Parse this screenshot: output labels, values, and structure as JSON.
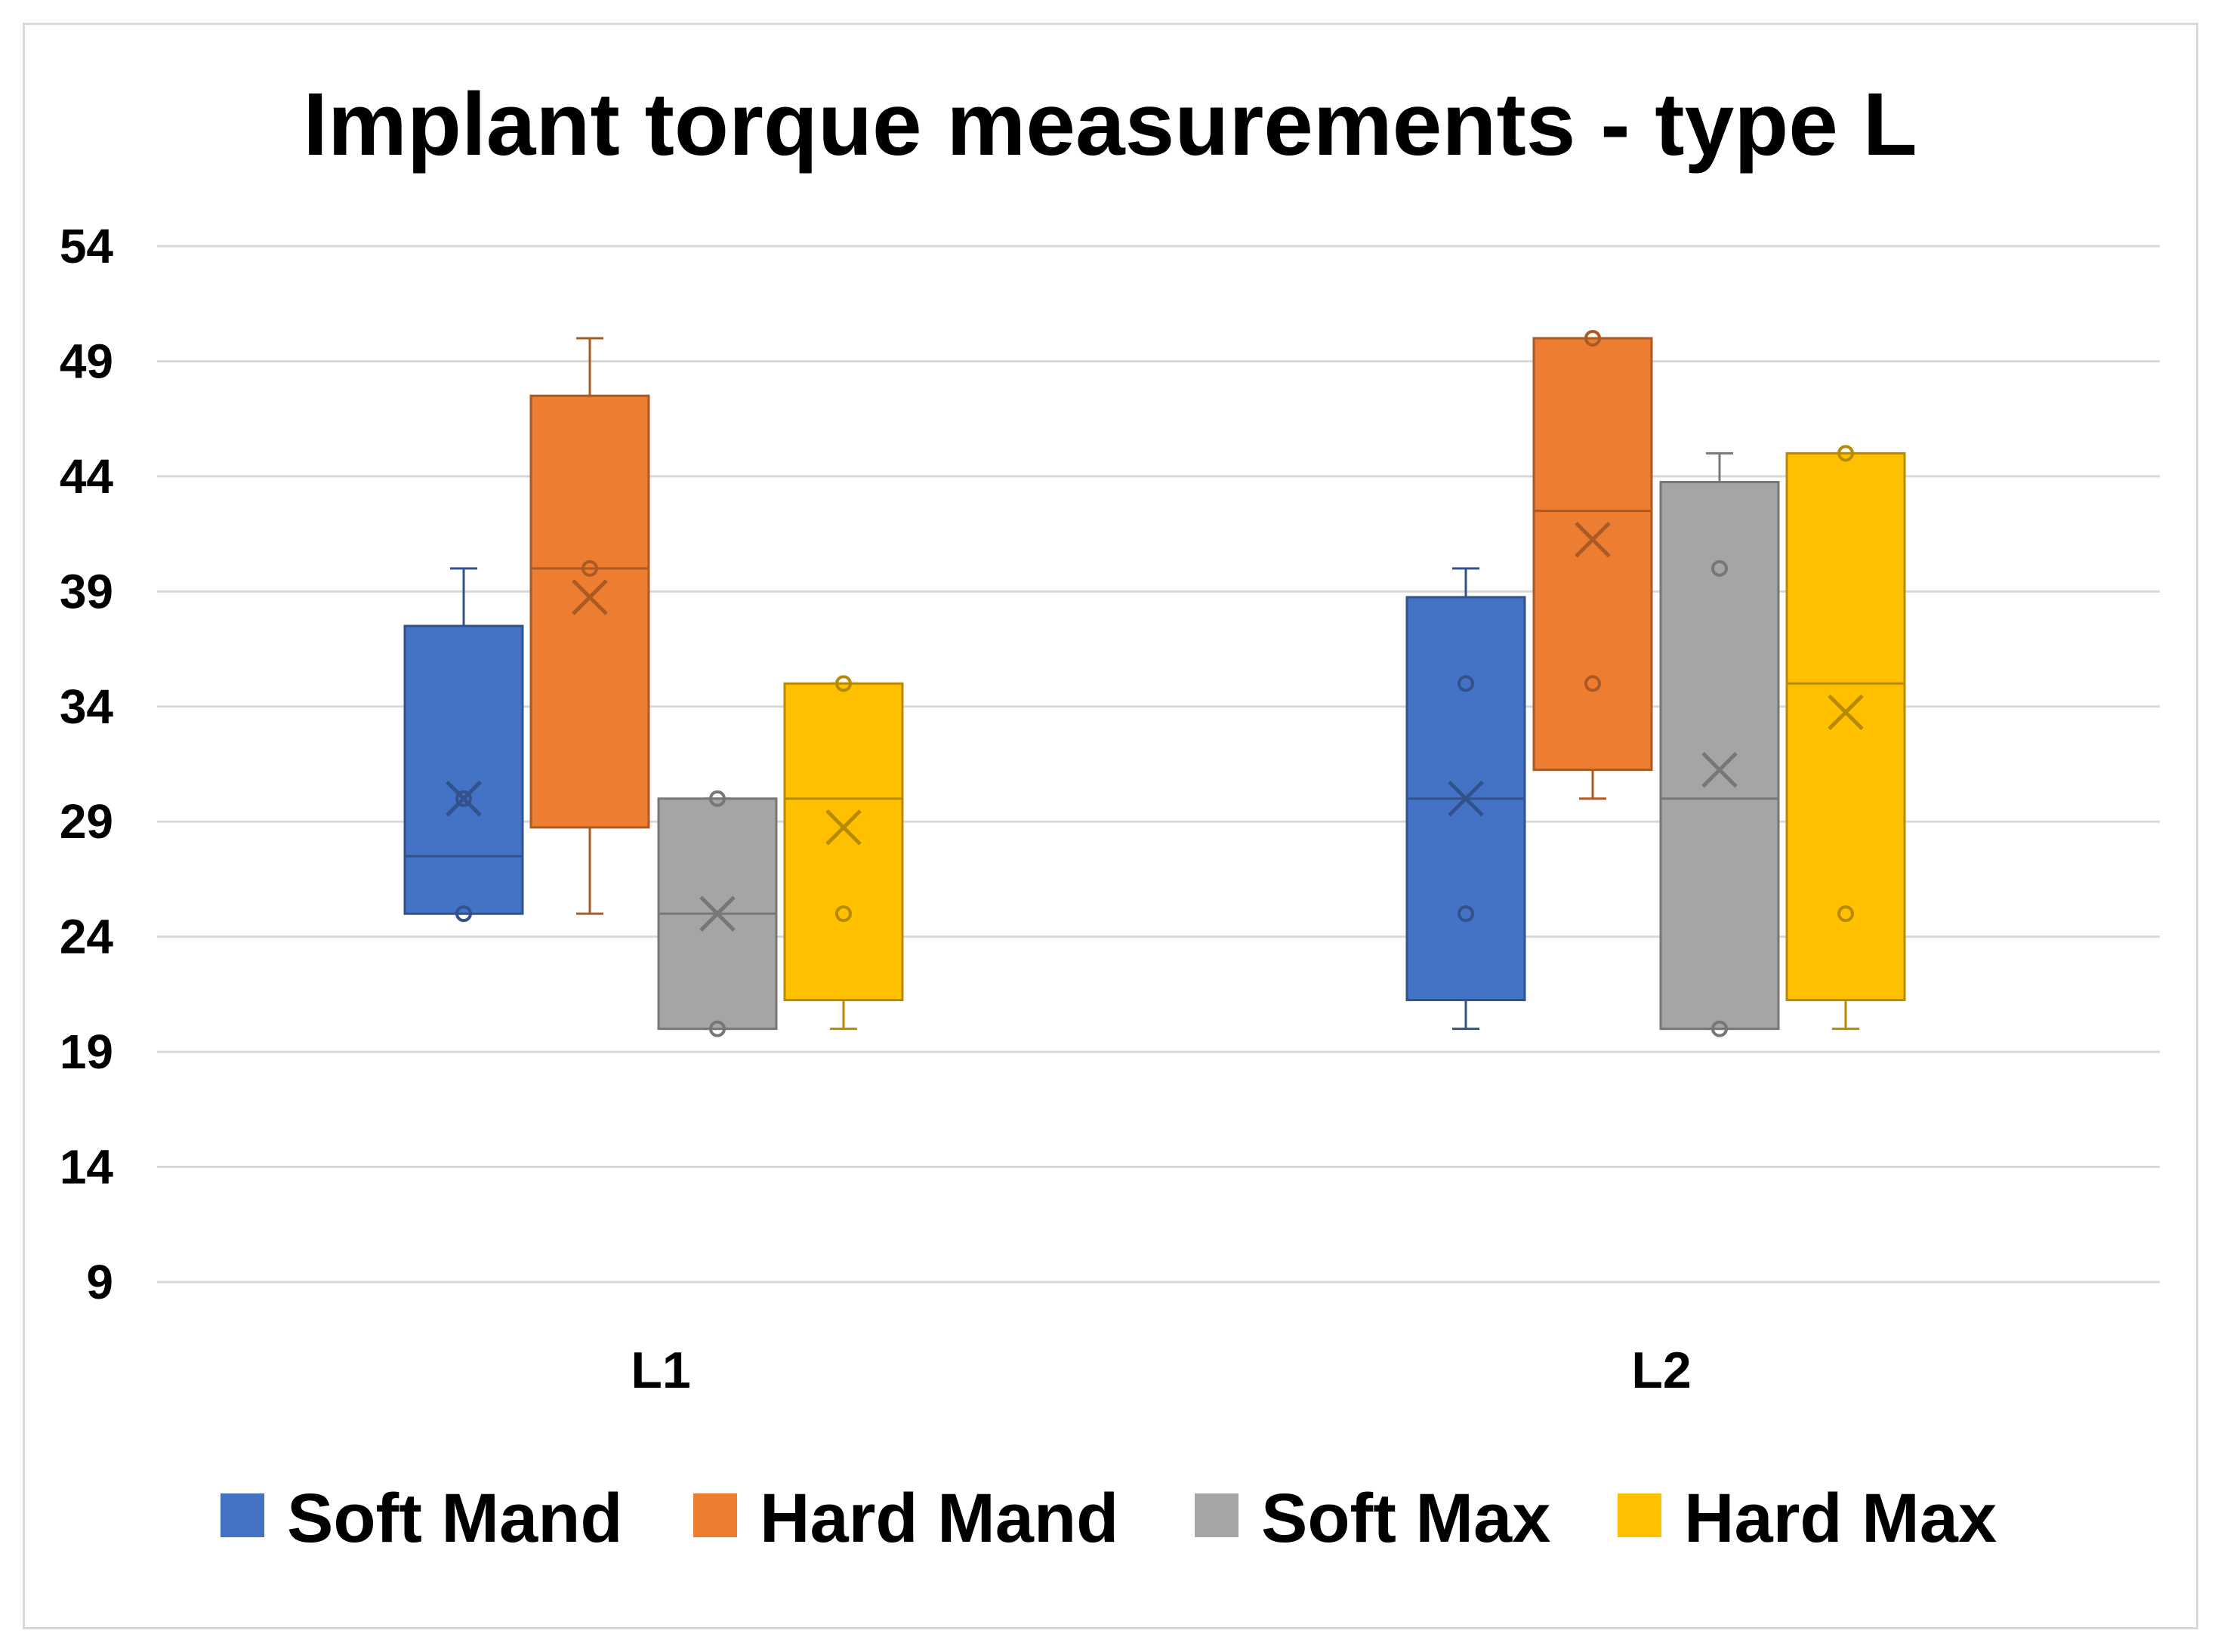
{
  "chart_data": {
    "type": "box",
    "title": "Implant torque measurements - type L",
    "xlabel": "",
    "ylabel": "",
    "ylim": [
      9,
      54
    ],
    "yticks": [
      54,
      49,
      44,
      39,
      34,
      29,
      24,
      19,
      14,
      9
    ],
    "grid": true,
    "legend_position": "bottom",
    "categories": [
      "L1",
      "L2"
    ],
    "series": [
      {
        "name": "Soft Mand",
        "color": "#4472C4",
        "boxes": [
          {
            "min": 25,
            "q1": 25,
            "median": 27.5,
            "q3": 37.5,
            "max": 40,
            "mean": 30,
            "points": [
              25,
              30
            ]
          },
          {
            "min": 20,
            "q1": 21.25,
            "median": 30,
            "q3": 38.75,
            "max": 40,
            "mean": 30,
            "points": [
              35,
              25
            ]
          }
        ]
      },
      {
        "name": "Hard Mand",
        "color": "#ED7D31",
        "boxes": [
          {
            "min": 25,
            "q1": 28.75,
            "median": 40,
            "q3": 47.5,
            "max": 50,
            "mean": 38.75,
            "points": [
              40
            ]
          },
          {
            "min": 30,
            "q1": 31.25,
            "median": 42.5,
            "q3": 50,
            "max": 50,
            "mean": 41.25,
            "points": [
              50,
              35
            ]
          }
        ]
      },
      {
        "name": "Soft Max",
        "color": "#A5A5A5",
        "boxes": [
          {
            "min": 20,
            "q1": 20,
            "median": 25,
            "q3": 30,
            "max": 30,
            "mean": 25,
            "points": [
              30,
              20
            ]
          },
          {
            "min": 20,
            "q1": 20,
            "median": 30,
            "q3": 43.75,
            "max": 45,
            "mean": 31.25,
            "points": [
              40,
              20
            ]
          }
        ]
      },
      {
        "name": "Hard Max",
        "color": "#FFC000",
        "boxes": [
          {
            "min": 20,
            "q1": 21.25,
            "median": 30,
            "q3": 35,
            "max": 35,
            "mean": 28.75,
            "points": [
              35,
              25
            ]
          },
          {
            "min": 20,
            "q1": 21.25,
            "median": 35,
            "q3": 45,
            "max": 45,
            "mean": 33.75,
            "points": [
              45,
              25
            ]
          }
        ]
      }
    ]
  }
}
